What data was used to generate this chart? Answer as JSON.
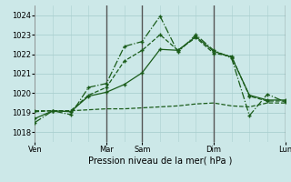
{
  "title": "",
  "xlabel": "Pression niveau de la mer( hPa )",
  "ylabel": "",
  "bg_color": "#cce8e8",
  "grid_color": "#aacfcf",
  "line_color": "#1a5c1a",
  "ylim": [
    1017.5,
    1024.5
  ],
  "xlim": [
    0,
    14
  ],
  "yticks": [
    1018,
    1019,
    1020,
    1021,
    1022,
    1023,
    1024
  ],
  "series": [
    {
      "x": [
        0,
        1,
        2,
        3,
        4,
        5,
        6,
        7,
        8,
        9,
        10,
        11,
        12,
        13,
        14
      ],
      "y": [
        1018.7,
        1019.1,
        1019.05,
        1019.85,
        1020.05,
        1020.45,
        1021.05,
        1022.25,
        1022.2,
        1022.9,
        1022.15,
        1021.85,
        1019.9,
        1019.65,
        1019.65
      ],
      "ls": "-",
      "marker": "+"
    },
    {
      "x": [
        0,
        1,
        2,
        3,
        4,
        5,
        6,
        7,
        8,
        9,
        10,
        11,
        12,
        13,
        14
      ],
      "y": [
        1019.1,
        1019.1,
        1019.1,
        1019.9,
        1020.3,
        1021.65,
        1022.2,
        1023.0,
        1022.2,
        1022.85,
        1022.05,
        1021.9,
        1019.85,
        1019.6,
        1019.6
      ],
      "ls": "--",
      "marker": "+"
    },
    {
      "x": [
        0,
        1,
        2,
        3,
        4,
        5,
        6,
        7,
        8,
        9,
        10,
        11,
        12,
        13,
        14
      ],
      "y": [
        1018.5,
        1019.1,
        1018.9,
        1020.3,
        1020.5,
        1022.4,
        1022.65,
        1023.95,
        1022.1,
        1023.0,
        1022.2,
        1021.8,
        1018.85,
        1019.95,
        1019.55
      ],
      "ls": "-.",
      "marker": "+"
    },
    {
      "x": [
        0,
        1,
        2,
        3,
        4,
        5,
        6,
        7,
        8,
        9,
        10,
        11,
        12,
        13,
        14
      ],
      "y": [
        1019.05,
        1019.1,
        1019.1,
        1019.15,
        1019.2,
        1019.2,
        1019.25,
        1019.3,
        1019.35,
        1019.45,
        1019.5,
        1019.35,
        1019.3,
        1019.5,
        1019.5
      ],
      "ls": "--",
      "marker": null
    }
  ],
  "vlines": [
    {
      "x": 0,
      "color": "#888888",
      "lw": 0.6
    },
    {
      "x": 4,
      "color": "#555555",
      "lw": 1.0
    },
    {
      "x": 6,
      "color": "#555555",
      "lw": 1.0
    },
    {
      "x": 10,
      "color": "#555555",
      "lw": 1.0
    },
    {
      "x": 14,
      "color": "#555555",
      "lw": 1.0
    }
  ],
  "xticks": [
    0,
    4,
    6,
    10,
    14
  ],
  "xtick_labels": [
    "Ven",
    "Mar",
    "Sam",
    "Dim",
    "Lun"
  ],
  "xlabel_fontsize": 7,
  "tick_fontsize": 6,
  "lw": 0.9,
  "ms": 3.5
}
